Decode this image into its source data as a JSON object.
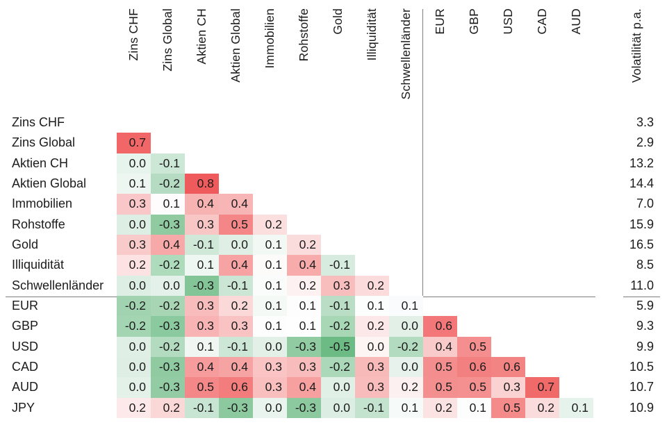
{
  "chart_data": {
    "type": "heatmap",
    "title": "",
    "volatility_label": "Volatilität p.a.",
    "col_labels": [
      "Zins CHF",
      "Zins Global",
      "Aktien CH",
      "Aktien Global",
      "Immobilien",
      "Rohstoffe",
      "Gold",
      "Illiquidität",
      "Schwellenländer",
      "EUR",
      "GBP",
      "USD",
      "CAD",
      "AUD"
    ],
    "group_separator_after": "Schwellenländer",
    "colorscale": {
      "positive_max": "#ef5b5c",
      "negative_max": "#6cba84",
      "mid": "#ffffff"
    },
    "rows": [
      {
        "label": "Zins CHF",
        "vol": "3.3",
        "cells": []
      },
      {
        "label": "Zins Global",
        "vol": "2.9",
        "cells": [
          {
            "v": "0.7",
            "c": "#f16768"
          }
        ]
      },
      {
        "label": "Aktien CH",
        "vol": "13.2",
        "cells": [
          {
            "v": "0.0",
            "c": "#e7f3ed"
          },
          {
            "v": "-0.1",
            "c": "#cde7d7"
          }
        ]
      },
      {
        "label": "Aktien Global",
        "vol": "14.4",
        "cells": [
          {
            "v": "0.1",
            "c": "#edf6f1"
          },
          {
            "v": "-0.2",
            "c": "#b5dcc2"
          },
          {
            "v": "0.8",
            "c": "#ef5b5c"
          }
        ]
      },
      {
        "label": "Immobilien",
        "vol": "7.0",
        "cells": [
          {
            "v": "0.3",
            "c": "#f9c7c7"
          },
          {
            "v": "0.1",
            "c": "#fefcfc"
          },
          {
            "v": "0.4",
            "c": "#f7b2b2"
          },
          {
            "v": "0.4",
            "c": "#f7b5b5"
          }
        ]
      },
      {
        "label": "Rohstoffe",
        "vol": "15.9",
        "cells": [
          {
            "v": "0.0",
            "c": "#ddeee4"
          },
          {
            "v": "-0.3",
            "c": "#8fcaa0"
          },
          {
            "v": "0.3",
            "c": "#f9c6c6"
          },
          {
            "v": "0.5",
            "c": "#f48687"
          },
          {
            "v": "0.2",
            "c": "#fbdede"
          }
        ]
      },
      {
        "label": "Gold",
        "vol": "16.5",
        "cells": [
          {
            "v": "0.3",
            "c": "#f9caca"
          },
          {
            "v": "0.4",
            "c": "#f7a8a8"
          },
          {
            "v": "-0.1",
            "c": "#cfe8d8"
          },
          {
            "v": "0.0",
            "c": "#e0efe6"
          },
          {
            "v": "0.1",
            "c": "#f2f8f4"
          },
          {
            "v": "0.2",
            "c": "#fbdcdc"
          }
        ]
      },
      {
        "label": "Illiquidität",
        "vol": "8.5",
        "cells": [
          {
            "v": "0.2",
            "c": "#fce2e2"
          },
          {
            "v": "-0.2",
            "c": "#aedbbc"
          },
          {
            "v": "0.1",
            "c": "#eff7f2"
          },
          {
            "v": "0.4",
            "c": "#f7a3a3"
          },
          {
            "v": "0.1",
            "c": "#fdfafa"
          },
          {
            "v": "0.4",
            "c": "#f7abab"
          },
          {
            "v": "-0.1",
            "c": "#d7ecdf"
          }
        ]
      },
      {
        "label": "Schwellenländer",
        "vol": "11.0",
        "cells": [
          {
            "v": "0.0",
            "c": "#ddeee4"
          },
          {
            "v": "0.0",
            "c": "#e4f1ea"
          },
          {
            "v": "-0.3",
            "c": "#84c597"
          },
          {
            "v": "-0.1",
            "c": "#cbe6d4"
          },
          {
            "v": "0.1",
            "c": "#fafcfb"
          },
          {
            "v": "0.2",
            "c": "#fdf1f1"
          },
          {
            "v": "0.3",
            "c": "#f8bdbd"
          },
          {
            "v": "0.2",
            "c": "#fbdbdb"
          }
        ]
      },
      {
        "label": "EUR",
        "vol": "5.9",
        "cells": [
          {
            "v": "-0.2",
            "c": "#a2d3b1"
          },
          {
            "v": "-0.2",
            "c": "#a8d6b5"
          },
          {
            "v": "0.3",
            "c": "#f8bcbc"
          },
          {
            "v": "0.2",
            "c": "#fbd9d9"
          },
          {
            "v": "0.1",
            "c": "#f4f9f6"
          },
          {
            "v": "0.1",
            "c": "#fdfdfd"
          },
          {
            "v": "-0.1",
            "c": "#b9dec5"
          },
          {
            "v": "0.1",
            "c": "#fcfdfd"
          },
          {
            "v": "0.1",
            "c": "#fafbfc"
          }
        ]
      },
      {
        "label": "GBP",
        "vol": "9.3",
        "cells": [
          {
            "v": "-0.2",
            "c": "#a3d5b2"
          },
          {
            "v": "-0.3",
            "c": "#8bc99e"
          },
          {
            "v": "0.3",
            "c": "#f8b4b4"
          },
          {
            "v": "0.3",
            "c": "#f9c3c3"
          },
          {
            "v": "0.1",
            "c": "#fdfdfd"
          },
          {
            "v": "0.1",
            "c": "#fefefe"
          },
          {
            "v": "-0.2",
            "c": "#a8d7b5"
          },
          {
            "v": "0.2",
            "c": "#fce8e8"
          },
          {
            "v": "0.0",
            "c": "#e2f0e8"
          },
          {
            "v": "0.6",
            "c": "#f37779"
          }
        ]
      },
      {
        "label": "USD",
        "vol": "9.9",
        "cells": [
          {
            "v": "0.0",
            "c": "#e0efe6"
          },
          {
            "v": "-0.2",
            "c": "#b2dbc0"
          },
          {
            "v": "0.1",
            "c": "#f0f7f3"
          },
          {
            "v": "-0.1",
            "c": "#cde7d7"
          },
          {
            "v": "0.0",
            "c": "#e2f0e7"
          },
          {
            "v": "-0.3",
            "c": "#90cba2"
          },
          {
            "v": "-0.5",
            "c": "#6cba84"
          },
          {
            "v": "0.0",
            "c": "#fdf4f4"
          },
          {
            "v": "-0.2",
            "c": "#b2dbc0"
          },
          {
            "v": "0.4",
            "c": "#f9caca"
          },
          {
            "v": "0.5",
            "c": "#f58f8f"
          }
        ]
      },
      {
        "label": "CAD",
        "vol": "10.5",
        "cells": [
          {
            "v": "0.0",
            "c": "#dfeee5"
          },
          {
            "v": "-0.3",
            "c": "#8fcaa1"
          },
          {
            "v": "0.4",
            "c": "#f69c9c"
          },
          {
            "v": "0.4",
            "c": "#f6a3a3"
          },
          {
            "v": "0.3",
            "c": "#fac4c4"
          },
          {
            "v": "0.3",
            "c": "#f9bcbc"
          },
          {
            "v": "-0.2",
            "c": "#abd8b8"
          },
          {
            "v": "0.3",
            "c": "#f8b9b9"
          },
          {
            "v": "0.0",
            "c": "#e6f2eb"
          },
          {
            "v": "0.5",
            "c": "#f48d8d"
          },
          {
            "v": "0.6",
            "c": "#f38080"
          },
          {
            "v": "0.6",
            "c": "#f38484"
          }
        ]
      },
      {
        "label": "AUD",
        "vol": "10.7",
        "cells": [
          {
            "v": "0.0",
            "c": "#e3f1e9"
          },
          {
            "v": "-0.3",
            "c": "#92cba4"
          },
          {
            "v": "0.5",
            "c": "#f48888"
          },
          {
            "v": "0.6",
            "c": "#f37d7d"
          },
          {
            "v": "0.3",
            "c": "#f9bfbf"
          },
          {
            "v": "0.4",
            "c": "#f6a0a0"
          },
          {
            "v": "0.0",
            "c": "#e0f0e7"
          },
          {
            "v": "0.3",
            "c": "#f8bcbc"
          },
          {
            "v": "0.2",
            "c": "#fdf0f0"
          },
          {
            "v": "0.5",
            "c": "#f48f8f"
          },
          {
            "v": "0.5",
            "c": "#f49090"
          },
          {
            "v": "0.3",
            "c": "#fbd2d2"
          },
          {
            "v": "0.7",
            "c": "#f06a6a"
          }
        ]
      },
      {
        "label": "JPY",
        "vol": "10.9",
        "cells": [
          {
            "v": "0.2",
            "c": "#fde9e9"
          },
          {
            "v": "0.2",
            "c": "#fbd8d8"
          },
          {
            "v": "-0.1",
            "c": "#c7e5d2"
          },
          {
            "v": "-0.3",
            "c": "#8cc99e"
          },
          {
            "v": "0.0",
            "c": "#e9f4ee"
          },
          {
            "v": "-0.3",
            "c": "#8cc99e"
          },
          {
            "v": "0.0",
            "c": "#dceee3"
          },
          {
            "v": "-0.1",
            "c": "#c3e3cf"
          },
          {
            "v": "0.1",
            "c": "#f6faf8"
          },
          {
            "v": "0.2",
            "c": "#fbe3e3"
          },
          {
            "v": "0.1",
            "c": "#fdfdfd"
          },
          {
            "v": "0.5",
            "c": "#f58a8a"
          },
          {
            "v": "0.2",
            "c": "#fbdcdc"
          },
          {
            "v": "0.1",
            "c": "#e6f2ec"
          }
        ]
      }
    ]
  },
  "colors": {
    "grid_line": "#7d7d7d",
    "text": "#1b1b1b",
    "background": "#ffffff"
  }
}
